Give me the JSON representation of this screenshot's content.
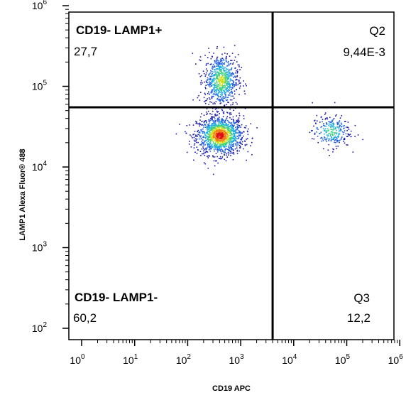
{
  "chart_data": {
    "type": "scatter",
    "xlabel": "CD19 APC",
    "ylabel": "LAMP1 Alexa Fluor® 488",
    "x_scale": "log",
    "y_scale": "log",
    "xlim": [
      1,
      1000000
    ],
    "ylim": [
      100,
      1000000
    ],
    "x_ticks": [
      {
        "base": "10",
        "exp": "0",
        "value": 1
      },
      {
        "base": "10",
        "exp": "1",
        "value": 10
      },
      {
        "base": "10",
        "exp": "2",
        "value": 100
      },
      {
        "base": "10",
        "exp": "3",
        "value": 1000
      },
      {
        "base": "10",
        "exp": "4",
        "value": 10000
      },
      {
        "base": "10",
        "exp": "5",
        "value": 100000
      },
      {
        "base": "10",
        "exp": "6",
        "value": 1000000
      }
    ],
    "y_ticks": [
      {
        "base": "10",
        "exp": "2",
        "value": 100
      },
      {
        "base": "10",
        "exp": "3",
        "value": 1000
      },
      {
        "base": "10",
        "exp": "4",
        "value": 10000
      },
      {
        "base": "10",
        "exp": "5",
        "value": 100000
      },
      {
        "base": "10",
        "exp": "6",
        "value": 1000000
      }
    ],
    "gates": {
      "x": 4000,
      "y": 55000
    },
    "quadrants": [
      {
        "id": "top-left",
        "name": "CD19- LAMP1+",
        "value": "27,7"
      },
      {
        "id": "top-right",
        "name": "Q2",
        "value": "9,44E-3"
      },
      {
        "id": "bottom-left",
        "name": "CD19- LAMP1-",
        "value": "60,2"
      },
      {
        "id": "bottom-right",
        "name": "Q3",
        "value": "12,2"
      }
    ],
    "populations": [
      {
        "name": "",
        "x_center": 400,
        "y_center": 25000,
        "x_spread_decades": 0.22,
        "y_spread_decades": 0.12,
        "density": "high"
      },
      {
        "name": "",
        "x_center": 420,
        "y_center": 120000,
        "x_spread_decades": 0.16,
        "y_spread_decades": 0.16,
        "density": "medium"
      },
      {
        "name": "",
        "x_center": 50000,
        "y_center": 28000,
        "x_spread_decades": 0.18,
        "y_spread_decades": 0.1,
        "density": "low"
      }
    ],
    "density_colors": [
      "#1a1aa8",
      "#2060e0",
      "#20b0e0",
      "#40d080",
      "#d0e020",
      "#f08010",
      "#e01010"
    ],
    "grid": false,
    "legend": "none"
  }
}
